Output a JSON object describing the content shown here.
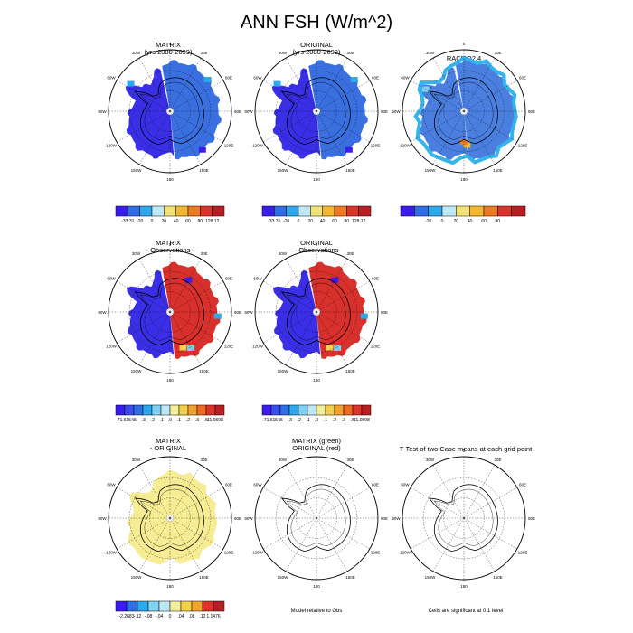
{
  "title": "ANN FSH (W/m^2)",
  "chart_data": {
    "type": "heatmap",
    "title": "ANN FSH (W/m^2)",
    "projection": "south polar stereographic",
    "lon_labels": [
      "0",
      "30E",
      "60E",
      "90E",
      "120E",
      "150E",
      "180",
      "150W",
      "120W",
      "90W",
      "60W",
      "30W"
    ],
    "panels": [
      {
        "id": "p1",
        "title": [
          "MATRIX",
          "(yrs 2080-2099)"
        ],
        "scheme": "diverging9",
        "colorbar": [
          "-33.31",
          "-20",
          "0",
          "20",
          "40",
          "60",
          "80",
          "128.12"
        ],
        "east_field_value": "-20",
        "west_field_value": "-33.31"
      },
      {
        "id": "p2",
        "title": [
          "ORIGINAL",
          "(yrs 2080-2099)"
        ],
        "scheme": "diverging9",
        "colorbar": [
          "-33.31",
          "-20",
          "0",
          "20",
          "40",
          "60",
          "80",
          "128.12"
        ],
        "east_field_value": "-20",
        "west_field_value": "-33.31"
      },
      {
        "id": "p3",
        "title": [
          "RACMO2.4"
        ],
        "scheme": "diverging9",
        "colorbar": [
          "",
          "-20",
          "0",
          "20",
          "40",
          "60",
          "80",
          ""
        ],
        "east_field_value": "-20",
        "west_field_value": "-20"
      },
      {
        "id": "p4",
        "title": [
          "MATRIX",
          "- Observations"
        ],
        "scheme": "diverging12",
        "colorbar": [
          "-71.6154",
          "-.5",
          "-.3",
          "-.2",
          "-.1",
          ".0",
          ".1",
          ".2",
          ".3",
          ".5",
          "11.0698"
        ],
        "east_field_value": "11.0698",
        "west_field_value": "-71.6154"
      },
      {
        "id": "p5",
        "title": [
          "ORIGINAL",
          "- Observations"
        ],
        "scheme": "diverging12",
        "colorbar": [
          "-71.6154",
          "-.5",
          "-.3",
          "-.2",
          "-.1",
          ".0",
          ".1",
          ".2",
          ".3",
          ".5",
          "11.0698"
        ],
        "east_field_value": "11.0698",
        "west_field_value": "-71.6154"
      },
      {
        "id": "p6",
        "title": [
          "MATRIX",
          "- ORIGINAL"
        ],
        "scheme": "diverging10",
        "colorbar": [
          "-2.2683",
          "-.12",
          "-.08",
          "-.04",
          "0",
          ".04",
          ".08",
          ".12",
          "1.1476"
        ],
        "field_value": "0"
      },
      {
        "id": "p7",
        "title": [
          "MATRIX (green)",
          "ORIGINAL (red)"
        ],
        "footer": "Model relative to Obs"
      },
      {
        "id": "p8",
        "title": [
          "T-Test of two Case means at each grid point"
        ],
        "footer": "Cells are significant at 0.1 level"
      }
    ]
  },
  "colors": {
    "diverging9": [
      "#3b1cf0",
      "#2f6ee6",
      "#2aa9ec",
      "#bfe9f7",
      "#f2e27a",
      "#f4b82e",
      "#ef7a23",
      "#e0322d",
      "#b81f25"
    ],
    "diverging12": [
      "#3b1cf0",
      "#3a4cec",
      "#2f6ee6",
      "#2aa9ec",
      "#7fd2f2",
      "#bfe9f7",
      "#f4ef9a",
      "#f2d04a",
      "#f4a22e",
      "#ef6a23",
      "#e0322d",
      "#b81f25"
    ],
    "diverging10": [
      "#3b1cf0",
      "#2f6ee6",
      "#2aa9ec",
      "#7fd2f2",
      "#bfe9f7",
      "#f4ef9a",
      "#f2d04a",
      "#f4a22e",
      "#e0322d",
      "#b81f25"
    ],
    "p1_east": "#3a6fe0",
    "p1_west": "#3a2fe6",
    "p3_east": "#4a7fe0",
    "p3_west": "#4a7fe0",
    "p3_edge": "#35b3ea",
    "p4_east": "#d8302c",
    "p4_west": "#3a2fe6",
    "p6_field": "#f6ec94"
  }
}
